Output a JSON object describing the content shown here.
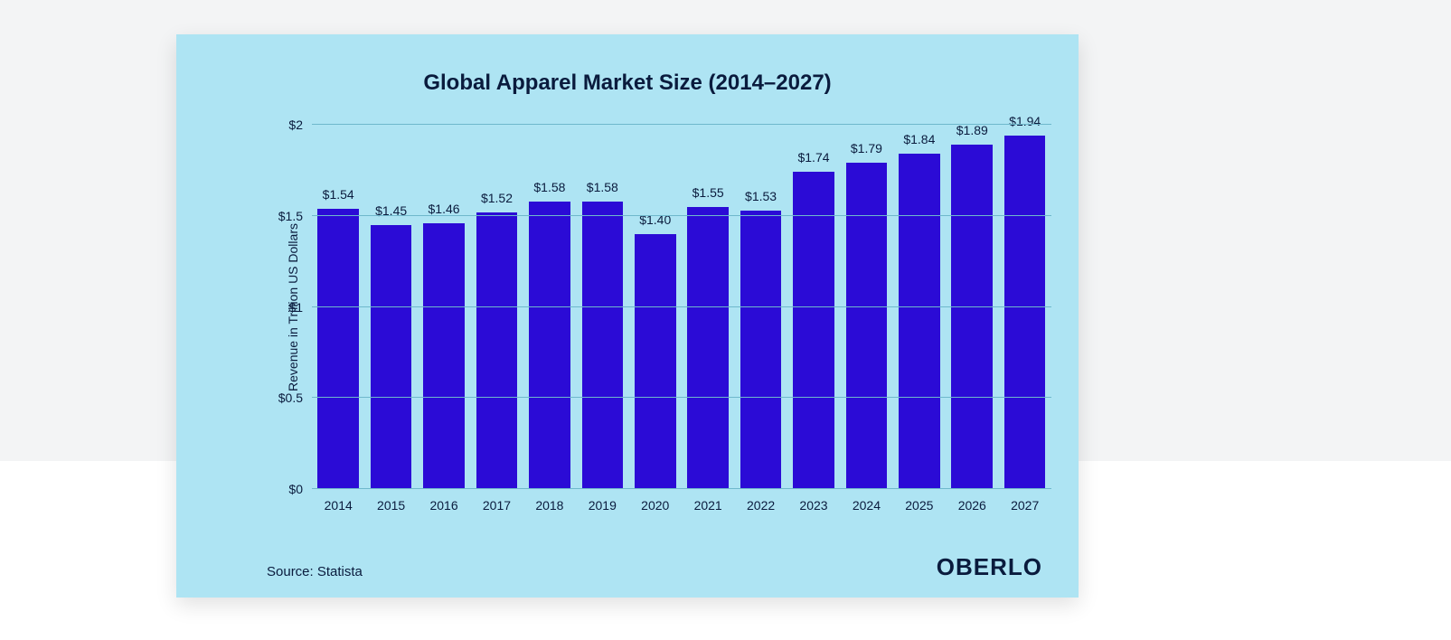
{
  "page": {
    "outer_bg_top": "#f3f4f5",
    "outer_bg_bottom": "#ffffff"
  },
  "card": {
    "bg_color": "#aee4f3",
    "text_color": "#0a1b3d",
    "grid_color": "#6fb8cc",
    "source_label": "Source: Statista",
    "brand_label": "OBERLO",
    "source_fontsize": 15,
    "brand_fontsize": 26
  },
  "chart": {
    "type": "bar",
    "title": "Global Apparel Market Size (2014–2027)",
    "title_fontsize": 24,
    "ylabel": "Revenue in Trillion US Dollars",
    "ylabel_fontsize": 14,
    "tick_fontsize": 14,
    "value_label_fontsize": 14,
    "value_prefix": "$",
    "categories": [
      "2014",
      "2015",
      "2016",
      "2017",
      "2018",
      "2019",
      "2020",
      "2021",
      "2022",
      "2023",
      "2024",
      "2025",
      "2026",
      "2027"
    ],
    "values": [
      1.54,
      1.45,
      1.46,
      1.52,
      1.58,
      1.58,
      1.4,
      1.55,
      1.53,
      1.74,
      1.79,
      1.84,
      1.89,
      1.94
    ],
    "value_labels": [
      "$1.54",
      "$1.45",
      "$1.46",
      "$1.52",
      "$1.58",
      "$1.58",
      "$1.40",
      "$1.55",
      "$1.53",
      "$1.74",
      "$1.79",
      "$1.84",
      "$1.89",
      "$1.94"
    ],
    "bar_color": "#2b0bd6",
    "bar_width_pct": 78,
    "ylim": [
      0,
      2
    ],
    "yticks": [
      0,
      0.5,
      1,
      1.5,
      2
    ],
    "ytick_labels": [
      "$0",
      "$0.5",
      "$1",
      "$1.5",
      "$2"
    ]
  }
}
